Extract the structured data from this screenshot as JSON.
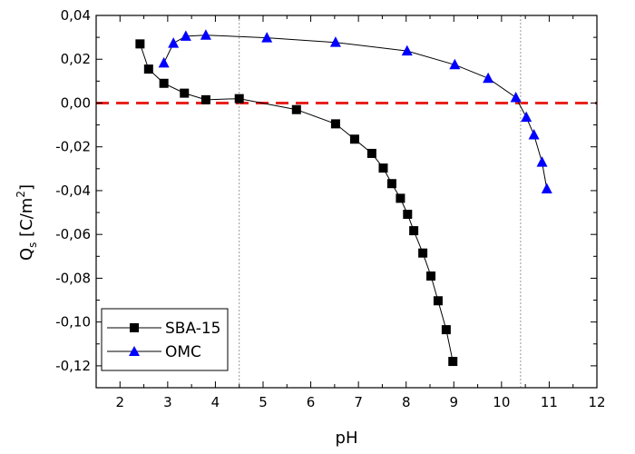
{
  "chart_data": {
    "type": "scatter",
    "xlabel": "pH",
    "ylabel": {
      "base": "Q",
      "sub": "s",
      "unit_open": " [C/m",
      "sup": "2",
      "unit_close": "]"
    },
    "xlim": [
      1.5,
      12
    ],
    "ylim": [
      -0.13,
      0.04
    ],
    "x_ticks": [
      2,
      3,
      4,
      5,
      6,
      7,
      8,
      9,
      10,
      11,
      12
    ],
    "x_tick_labels": [
      "2",
      "3",
      "4",
      "5",
      "6",
      "7",
      "8",
      "9",
      "10",
      "11",
      "12"
    ],
    "y_ticks": [
      0.04,
      0.02,
      0.0,
      -0.02,
      -0.04,
      -0.06,
      -0.08,
      -0.1,
      -0.12
    ],
    "y_tick_labels": [
      "0,04",
      "0,02",
      "0,00",
      "-0,02",
      "-0,04",
      "-0,06",
      "-0,08",
      "-0,10",
      "-0,12"
    ],
    "grid": false,
    "legend_position": "bottom-left",
    "reference_lines": [
      {
        "orientation": "horizontal",
        "value": 0.0,
        "color": "#e8211d",
        "style": "dashed"
      },
      {
        "orientation": "vertical",
        "value": 4.5,
        "color": "#999999",
        "style": "dotted"
      },
      {
        "orientation": "vertical",
        "value": 10.4,
        "color": "#999999",
        "style": "dotted"
      }
    ],
    "series": [
      {
        "name": "SBA-15",
        "marker": "square",
        "color": "#000000",
        "x": [
          2.42,
          2.6,
          2.92,
          3.35,
          3.8,
          4.5,
          5.7,
          6.52,
          6.92,
          7.28,
          7.52,
          7.7,
          7.88,
          8.03,
          8.16,
          8.35,
          8.52,
          8.67,
          8.84,
          8.98
        ],
        "y": [
          0.027,
          0.0155,
          0.009,
          0.0045,
          0.0015,
          0.002,
          -0.003,
          -0.0095,
          -0.0165,
          -0.023,
          -0.0297,
          -0.0368,
          -0.0435,
          -0.0508,
          -0.0583,
          -0.0685,
          -0.079,
          -0.0903,
          -0.1035,
          -0.118
        ]
      },
      {
        "name": "OMC",
        "marker": "triangle",
        "color": "#0000ff",
        "x": [
          2.92,
          3.12,
          3.38,
          3.8,
          5.08,
          6.52,
          8.02,
          9.02,
          9.72,
          10.3,
          10.52,
          10.68,
          10.85,
          10.95
        ],
        "y": [
          0.0183,
          0.0273,
          0.0305,
          0.031,
          0.0298,
          0.0277,
          0.0238,
          0.0175,
          0.0113,
          0.0025,
          -0.0065,
          -0.0145,
          -0.027,
          -0.0392
        ]
      }
    ]
  }
}
